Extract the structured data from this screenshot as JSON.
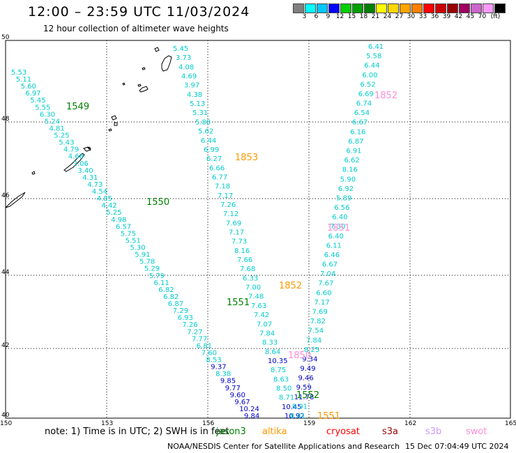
{
  "header": {
    "title": "12:00 – 23:59 UTC 11/03/2024",
    "subtitle": "12 hour collection of altimeter wave heights"
  },
  "scale": {
    "colors": [
      "#808080",
      "#00ffff",
      "#00c8ff",
      "#0000ff",
      "#00d000",
      "#00a000",
      "#008000",
      "#ffff00",
      "#ffd700",
      "#ffa500",
      "#ff7f00",
      "#ff0000",
      "#cc0000",
      "#990000",
      "#a00060",
      "#cc66cc",
      "#ff99ff",
      "#000000"
    ],
    "labels": [
      "3",
      "6",
      "9",
      "12",
      "15",
      "18",
      "21",
      "24",
      "27",
      "30",
      "33",
      "36",
      "39",
      "42",
      "45",
      "70"
    ],
    "unit": "(ft)"
  },
  "map": {
    "y_labels": [
      "50",
      "48",
      "46",
      "44",
      "42",
      "40"
    ],
    "x_labels": [
      "150",
      "153",
      "156",
      "159",
      "162",
      "165"
    ]
  },
  "passes": [
    {
      "label": "1549",
      "color": "#008000"
    },
    {
      "label": "1550",
      "color": "#008000"
    },
    {
      "label": "1551",
      "color": "#008000"
    },
    {
      "label": "1552",
      "color": "#008000"
    },
    {
      "label": "1853",
      "color": "#ff9900"
    },
    {
      "label": "1852",
      "color": "#ff9900"
    },
    {
      "label": "1852",
      "color": "#ff8cd9"
    },
    {
      "label": "1851",
      "color": "#ff8cd9"
    },
    {
      "label": "1850",
      "color": "#ff8cd9"
    },
    {
      "label": "1551",
      "color": "#ff9900"
    }
  ],
  "tracks": {
    "west_track": [
      "5.53",
      "5.11",
      "5.60",
      "6.97",
      "5.45",
      "5.55",
      "6.30",
      "5.24",
      "4.81",
      "5.25",
      "5.43",
      "4.79",
      "4.68",
      "3.06",
      "3.40",
      "4.31",
      "4.73",
      "4.54",
      "4.85",
      "4.42",
      "5.25",
      "4.98",
      "6.57",
      "5.75",
      "5.51",
      "5.30",
      "5.91",
      "5.78",
      "5.29",
      "5.79",
      "6.11",
      "6.82",
      "6.82",
      "6.87",
      "7.29",
      "6.93",
      "7.26",
      "7.27",
      "7.77",
      "6.81",
      "7.60",
      "8.53",
      "9.37",
      "8.38",
      "9.85",
      "9.77",
      "9.60",
      "9.67",
      "10.24",
      "9.84"
    ],
    "center_track": [
      "5.45",
      "3.73",
      "4.08",
      "4.69",
      "3.97",
      "4.38",
      "5.13",
      "5.31",
      "5.88",
      "5.62",
      "6.44",
      "6.99",
      "6.27",
      "6.66",
      "6.77",
      "7.18",
      "7.17",
      "7.26",
      "7.12",
      "7.69",
      "7.17",
      "7.73",
      "8.16",
      "7.66",
      "7.68",
      "6.33",
      "7.00",
      "7.48",
      "7.63",
      "7.42",
      "7.07",
      "7.84",
      "8.33",
      "8.64",
      "10.35",
      "8.75",
      "8.63",
      "8.50",
      "8.71",
      "10.45",
      "10.92"
    ],
    "east_track": [
      "6.41",
      "5.58",
      "6.44",
      "6.00",
      "6.52",
      "6.69",
      "6.74",
      "6.54",
      "6.67",
      "6.16",
      "6.87",
      "6.91",
      "6.62",
      "8.16",
      "5.90",
      "6.92",
      "5.89",
      "6.56",
      "6.40",
      "7.30",
      "6.40",
      "6.11",
      "6.46",
      "6.67",
      "7.04",
      "7.67",
      "6.60",
      "7.17",
      "7.69",
      "7.82",
      "7.54",
      "7.84",
      "8.25",
      "9.34",
      "9.49",
      "9.46",
      "9.59",
      "11.78",
      "8.91",
      "8.41"
    ]
  },
  "footer": {
    "note": "note: 1) Time is in UTC; 2) SWH is in feet",
    "satellites": [
      {
        "name": "jason3",
        "color": "#008000"
      },
      {
        "name": "altika",
        "color": "#ff9900"
      },
      {
        "name": "cryosat",
        "color": "#ff0000"
      },
      {
        "name": "s3a",
        "color": "#990000"
      },
      {
        "name": "s3b",
        "color": "#cc99ff"
      },
      {
        "name": "swot",
        "color": "#ff8cd9"
      }
    ],
    "credit": "NOAA/NESDIS Center for Satellite Applications and Research",
    "timestamp": "15 Dec 07:04:49 UTC 2024"
  }
}
